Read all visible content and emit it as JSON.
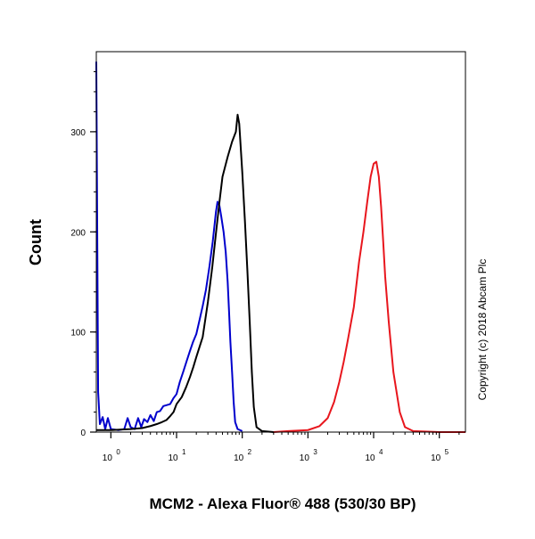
{
  "chart_data": {
    "type": "line",
    "xlabel": "MCM2 - Alexa Fluor® 488 (530/30 BP)",
    "ylabel": "Count",
    "copyright": "Copyright (c) 2018 Abcam Plc",
    "x_scale": "log",
    "xlim": [
      0.6,
      250000
    ],
    "ylim": [
      0,
      380
    ],
    "x_ticks": [
      {
        "value": 1,
        "base": "10",
        "exp": "0"
      },
      {
        "value": 10,
        "base": "10",
        "exp": "1"
      },
      {
        "value": 100,
        "base": "10",
        "exp": "2"
      },
      {
        "value": 1000,
        "base": "10",
        "exp": "3"
      },
      {
        "value": 10000,
        "base": "10",
        "exp": "4"
      },
      {
        "value": 100000,
        "base": "10",
        "exp": "5"
      }
    ],
    "y_ticks": [
      {
        "value": 0,
        "label": "0"
      },
      {
        "value": 100,
        "label": "100"
      },
      {
        "value": 200,
        "label": "200"
      },
      {
        "value": 300,
        "label": "300"
      }
    ],
    "grid": false,
    "series": [
      {
        "color": "#0000cc",
        "points": [
          [
            0.6,
            370
          ],
          [
            0.62,
            200
          ],
          [
            0.64,
            40
          ],
          [
            0.68,
            8
          ],
          [
            0.75,
            15
          ],
          [
            0.82,
            3
          ],
          [
            0.9,
            14
          ],
          [
            1.0,
            3
          ],
          [
            1.3,
            2
          ],
          [
            1.6,
            3
          ],
          [
            1.8,
            14
          ],
          [
            2.0,
            5
          ],
          [
            2.3,
            3
          ],
          [
            2.6,
            14
          ],
          [
            2.9,
            5
          ],
          [
            3.2,
            13
          ],
          [
            3.6,
            10
          ],
          [
            4.0,
            17
          ],
          [
            4.5,
            11
          ],
          [
            5.0,
            20
          ],
          [
            5.6,
            21
          ],
          [
            6.3,
            26
          ],
          [
            7.1,
            27
          ],
          [
            8.0,
            28
          ],
          [
            9.0,
            34
          ],
          [
            10,
            38
          ],
          [
            11.2,
            50
          ],
          [
            12.6,
            60
          ],
          [
            14.1,
            70
          ],
          [
            15.8,
            80
          ],
          [
            17.8,
            90
          ],
          [
            20,
            98
          ],
          [
            22.4,
            112
          ],
          [
            25,
            126
          ],
          [
            28,
            142
          ],
          [
            31.6,
            165
          ],
          [
            35.5,
            190
          ],
          [
            39.8,
            220
          ],
          [
            42,
            230
          ],
          [
            45,
            226
          ],
          [
            48,
            215
          ],
          [
            52,
            200
          ],
          [
            56,
            180
          ],
          [
            60,
            150
          ],
          [
            63,
            120
          ],
          [
            66,
            90
          ],
          [
            70,
            60
          ],
          [
            74,
            30
          ],
          [
            78,
            10
          ],
          [
            85,
            3
          ],
          [
            100,
            1
          ]
        ]
      },
      {
        "color": "#000000",
        "points": [
          [
            0.6,
            2
          ],
          [
            1.0,
            2
          ],
          [
            2.0,
            3
          ],
          [
            3.0,
            4
          ],
          [
            4.0,
            6
          ],
          [
            5.0,
            8
          ],
          [
            6.0,
            10
          ],
          [
            7.0,
            12
          ],
          [
            8.0,
            16
          ],
          [
            9.0,
            20
          ],
          [
            10,
            28
          ],
          [
            12,
            35
          ],
          [
            14,
            45
          ],
          [
            16,
            55
          ],
          [
            18,
            65
          ],
          [
            20,
            75
          ],
          [
            25,
            95
          ],
          [
            30,
            130
          ],
          [
            35,
            165
          ],
          [
            40,
            200
          ],
          [
            45,
            230
          ],
          [
            50,
            255
          ],
          [
            60,
            275
          ],
          [
            70,
            290
          ],
          [
            80,
            300
          ],
          [
            85,
            317
          ],
          [
            90,
            308
          ],
          [
            100,
            260
          ],
          [
            110,
            210
          ],
          [
            120,
            160
          ],
          [
            130,
            110
          ],
          [
            140,
            60
          ],
          [
            150,
            25
          ],
          [
            165,
            5
          ],
          [
            200,
            1
          ],
          [
            300,
            0
          ]
        ]
      },
      {
        "color": "#e8161d",
        "points": [
          [
            300,
            0
          ],
          [
            500,
            1
          ],
          [
            1000,
            2
          ],
          [
            1500,
            6
          ],
          [
            2000,
            14
          ],
          [
            2500,
            30
          ],
          [
            3000,
            50
          ],
          [
            3500,
            70
          ],
          [
            4000,
            90
          ],
          [
            5000,
            125
          ],
          [
            6000,
            170
          ],
          [
            7000,
            200
          ],
          [
            8000,
            230
          ],
          [
            9000,
            255
          ],
          [
            10000,
            268
          ],
          [
            11000,
            270
          ],
          [
            12000,
            255
          ],
          [
            13000,
            225
          ],
          [
            14000,
            190
          ],
          [
            15000,
            155
          ],
          [
            17000,
            110
          ],
          [
            20000,
            60
          ],
          [
            25000,
            20
          ],
          [
            30000,
            5
          ],
          [
            40000,
            1
          ],
          [
            100000,
            0
          ],
          [
            250000,
            0
          ]
        ]
      }
    ]
  }
}
